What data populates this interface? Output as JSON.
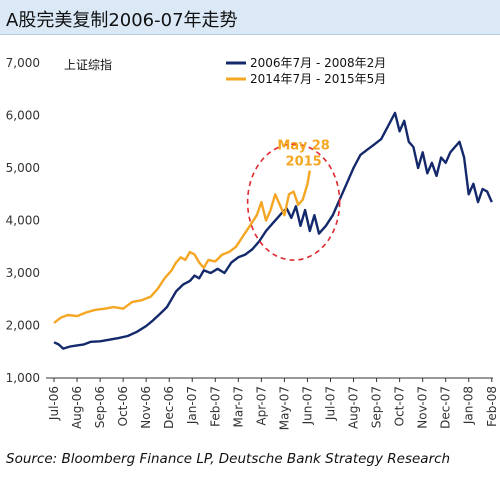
{
  "header": {
    "title": "A股完美复制2006-07年走势"
  },
  "footer": {
    "source": "Source: Bloomberg Finance LP, Deutsche Bank Strategy Research"
  },
  "chart_data": {
    "type": "line",
    "ylabel": "上证综指",
    "ylim": [
      1000,
      7000
    ],
    "yticks": [
      "1,000",
      "2,000",
      "3,000",
      "4,000",
      "5,000",
      "6,000",
      "7,000"
    ],
    "categories": [
      "Jul-06",
      "Aug-06",
      "Sep-06",
      "Oct-06",
      "Nov-06",
      "Dec-06",
      "Jan-07",
      "Feb-07",
      "Mar-07",
      "Apr-07",
      "May-07",
      "Jun-07",
      "Jul-07",
      "Aug-07",
      "Sep-07",
      "Oct-07",
      "Nov-07",
      "Dec-07",
      "Jan-08",
      "Feb-08"
    ],
    "legend_position": "top",
    "annotation": {
      "text": [
        "May 28",
        "2015"
      ],
      "color": "#f5a623"
    },
    "series": [
      {
        "name": "2006年7月 - 2008年2月",
        "color": "#13296b",
        "x": [
          0,
          0.2,
          0.4,
          0.7,
          1.0,
          1.3,
          1.6,
          2.0,
          2.4,
          2.8,
          3.2,
          3.6,
          4.0,
          4.3,
          4.6,
          4.9,
          5.1,
          5.3,
          5.6,
          5.9,
          6.1,
          6.3,
          6.5,
          6.8,
          7.1,
          7.4,
          7.7,
          8.0,
          8.3,
          8.6,
          8.9,
          9.2,
          9.5,
          9.7,
          9.9,
          10.1,
          10.3,
          10.5,
          10.7,
          10.9,
          11.1,
          11.3,
          11.5,
          11.8,
          12.1,
          12.4,
          12.7,
          13.0,
          13.3,
          13.6,
          13.9,
          14.2,
          14.5,
          14.8,
          15.0,
          15.2,
          15.4,
          15.6,
          15.8,
          16.0,
          16.2,
          16.4,
          16.6,
          16.8,
          17.0,
          17.2,
          17.4,
          17.6,
          17.8,
          18.0,
          18.2,
          18.4,
          18.6,
          18.8,
          19.0
        ],
        "values": [
          1680,
          1640,
          1560,
          1600,
          1620,
          1640,
          1690,
          1700,
          1730,
          1760,
          1800,
          1880,
          1990,
          2100,
          2220,
          2350,
          2500,
          2650,
          2780,
          2850,
          2950,
          2900,
          3050,
          3000,
          3080,
          3000,
          3200,
          3300,
          3350,
          3450,
          3600,
          3800,
          3950,
          4050,
          4150,
          4230,
          4050,
          4270,
          3900,
          4200,
          3800,
          4100,
          3750,
          3900,
          4100,
          4400,
          4700,
          5000,
          5250,
          5350,
          5450,
          5550,
          5800,
          6050,
          5700,
          5900,
          5500,
          5400,
          5000,
          5300,
          4900,
          5100,
          4850,
          5200,
          5100,
          5300,
          5400,
          5500,
          5200,
          4500,
          4700,
          4350,
          4600,
          4550,
          4350
        ]
      },
      {
        "name": "2014年7月 - 2015年5月",
        "color": "#f5a623",
        "x": [
          0,
          0.3,
          0.6,
          1.0,
          1.4,
          1.8,
          2.2,
          2.6,
          3.0,
          3.4,
          3.8,
          4.2,
          4.5,
          4.8,
          5.1,
          5.3,
          5.5,
          5.7,
          5.9,
          6.1,
          6.3,
          6.5,
          6.7,
          7.0,
          7.3,
          7.6,
          7.9,
          8.2,
          8.5,
          8.8,
          9.0,
          9.2,
          9.4,
          9.6,
          9.8,
          10.0,
          10.2,
          10.4,
          10.6,
          10.8,
          11.0,
          11.1
        ],
        "values": [
          2050,
          2150,
          2200,
          2180,
          2250,
          2300,
          2320,
          2350,
          2320,
          2450,
          2480,
          2550,
          2700,
          2900,
          3050,
          3200,
          3300,
          3250,
          3400,
          3350,
          3200,
          3100,
          3250,
          3220,
          3350,
          3400,
          3500,
          3700,
          3900,
          4100,
          4350,
          4000,
          4200,
          4500,
          4300,
          4100,
          4500,
          4550,
          4300,
          4400,
          4700,
          4950
        ]
      }
    ]
  }
}
